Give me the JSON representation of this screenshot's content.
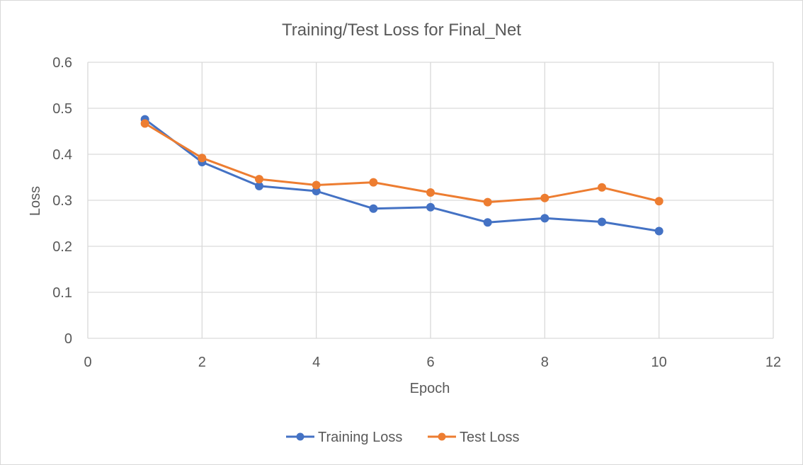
{
  "chart_data": {
    "type": "scatter",
    "title": "Training/Test Loss for Final_Net",
    "xlabel": "Epoch",
    "ylabel": "Loss",
    "xlim": [
      0,
      12
    ],
    "ylim": [
      0,
      0.6
    ],
    "xticks": [
      "0",
      "2",
      "4",
      "6",
      "8",
      "10",
      "12"
    ],
    "yticks": [
      "0",
      "0.1",
      "0.2",
      "0.3",
      "0.4",
      "0.5",
      "0.6"
    ],
    "grid": true,
    "legend_position": "bottom",
    "series": [
      {
        "name": "Training Loss",
        "color": "#4472c4",
        "x": [
          1,
          2,
          3,
          4,
          5,
          6,
          7,
          8,
          9,
          10
        ],
        "y": [
          0.476,
          0.383,
          0.331,
          0.32,
          0.282,
          0.285,
          0.252,
          0.261,
          0.253,
          0.233
        ]
      },
      {
        "name": "Test Loss",
        "color": "#ed7d31",
        "x": [
          1,
          2,
          3,
          4,
          5,
          6,
          7,
          8,
          9,
          10
        ],
        "y": [
          0.467,
          0.392,
          0.346,
          0.333,
          0.339,
          0.317,
          0.296,
          0.305,
          0.328,
          0.298
        ]
      }
    ]
  }
}
